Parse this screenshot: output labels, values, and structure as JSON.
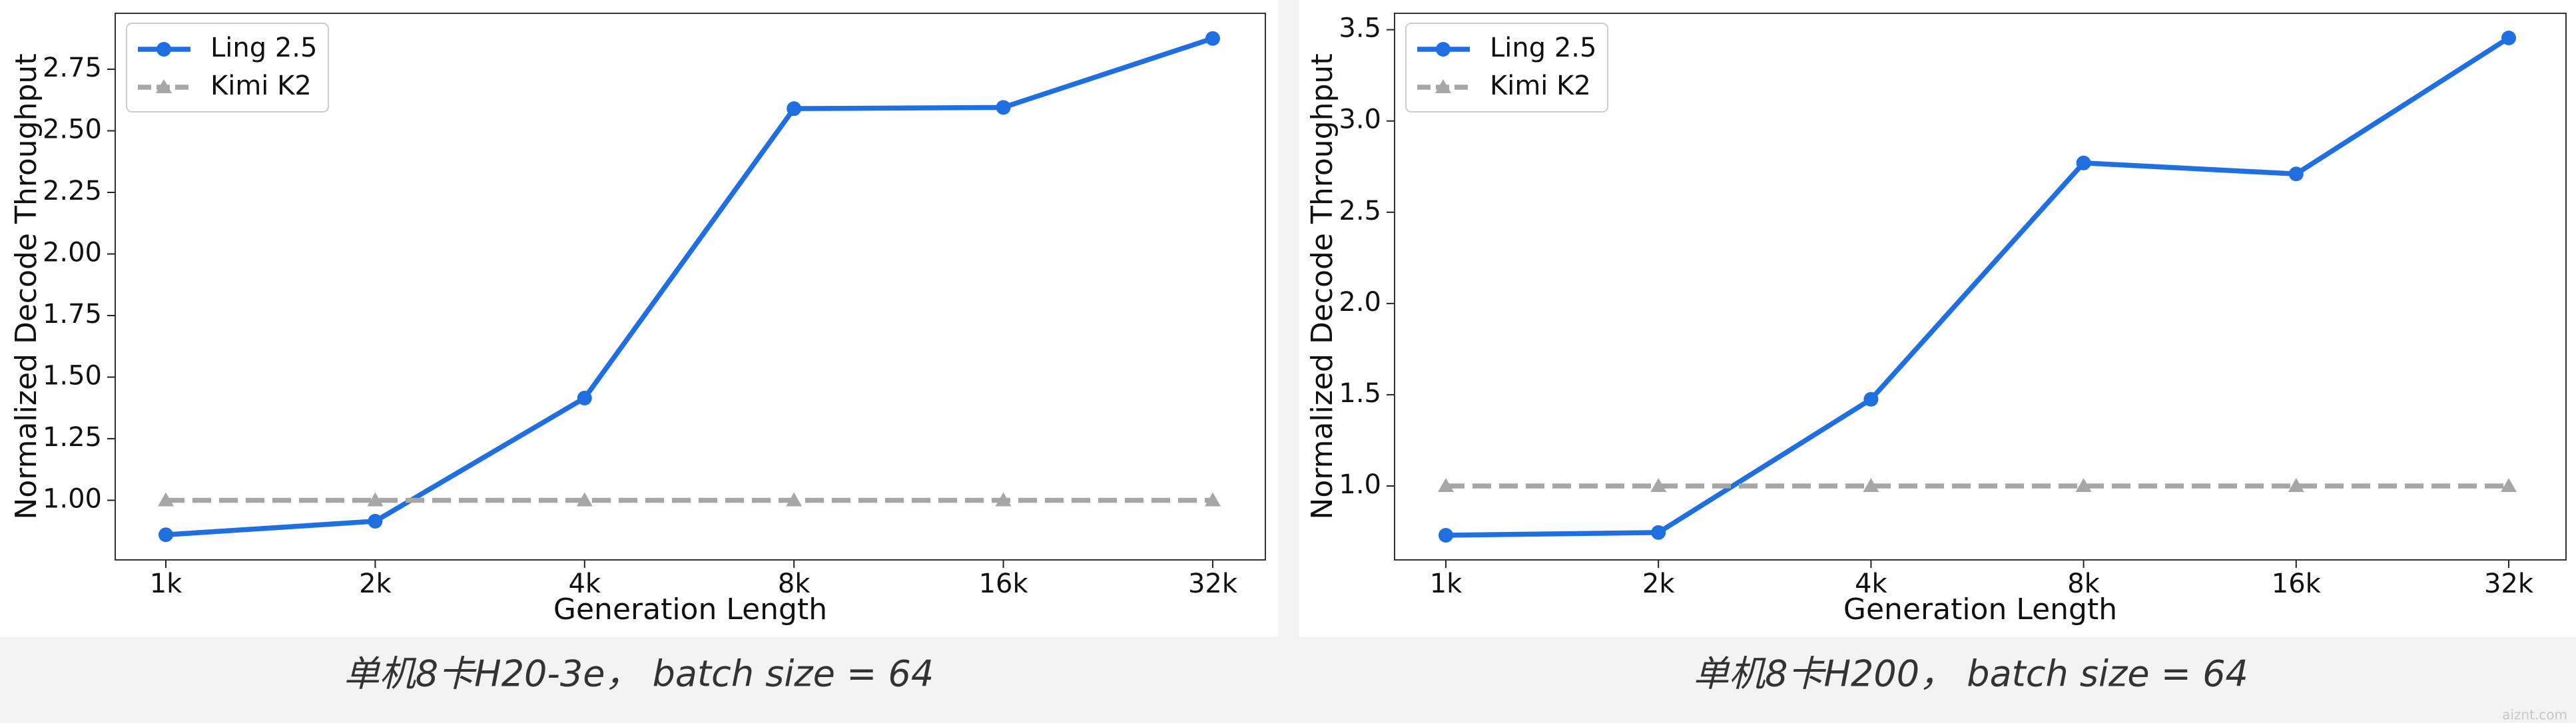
{
  "chart_data": [
    {
      "type": "line",
      "xlabel": "Generation Length",
      "ylabel": "Normalized Decode Throughput",
      "categories": [
        "1k",
        "2k",
        "4k",
        "8k",
        "16k",
        "32k"
      ],
      "series": [
        {
          "name": "Ling 2.5",
          "color": "#1f6fe0",
          "marker": "circle",
          "dashed": false,
          "values": [
            0.86,
            0.915,
            1.415,
            2.59,
            2.595,
            2.875
          ]
        },
        {
          "name": "Kimi K2",
          "color": "#a6a6a6",
          "marker": "triangle",
          "dashed": true,
          "values": [
            1.0,
            1.0,
            1.0,
            1.0,
            1.0,
            1.0
          ]
        }
      ],
      "ylim": [
        0.758,
        2.977
      ],
      "yticks": [
        {
          "value": 1,
          "label": "1.00"
        },
        {
          "value": 1.25,
          "label": "1.25"
        },
        {
          "value": 1.5,
          "label": "1.50"
        },
        {
          "value": 1.75,
          "label": "1.75"
        },
        {
          "value": 2,
          "label": "2.00"
        },
        {
          "value": 2.25,
          "label": "2.25"
        },
        {
          "value": 2.5,
          "label": "2.50"
        },
        {
          "value": 2.75,
          "label": "2.75"
        }
      ],
      "legend": "upper left",
      "grid": false,
      "caption": "单机8卡H20-3e， batch size = 64"
    },
    {
      "type": "line",
      "xlabel": "Generation Length",
      "ylabel": "Normalized Decode Throughput",
      "categories": [
        "1k",
        "2k",
        "4k",
        "8k",
        "16k",
        "32k"
      ],
      "series": [
        {
          "name": "Ling 2.5",
          "color": "#1f6fe0",
          "marker": "circle",
          "dashed": false,
          "values": [
            0.73,
            0.745,
            1.475,
            2.77,
            2.71,
            3.455
          ]
        },
        {
          "name": "Kimi K2",
          "color": "#a6a6a6",
          "marker": "triangle",
          "dashed": true,
          "values": [
            1.0,
            1.0,
            1.0,
            1.0,
            1.0,
            1.0
          ]
        }
      ],
      "ylim": [
        0.595,
        3.59
      ],
      "yticks": [
        {
          "value": 1,
          "label": "1.0"
        },
        {
          "value": 1.5,
          "label": "1.5"
        },
        {
          "value": 2,
          "label": "2.0"
        },
        {
          "value": 2.5,
          "label": "2.5"
        },
        {
          "value": 3,
          "label": "3.0"
        },
        {
          "value": 3.5,
          "label": "3.5"
        }
      ],
      "legend": "upper left",
      "grid": false,
      "caption": "单机8卡H200， batch size = 64"
    }
  ],
  "watermark": "aiznt.com"
}
